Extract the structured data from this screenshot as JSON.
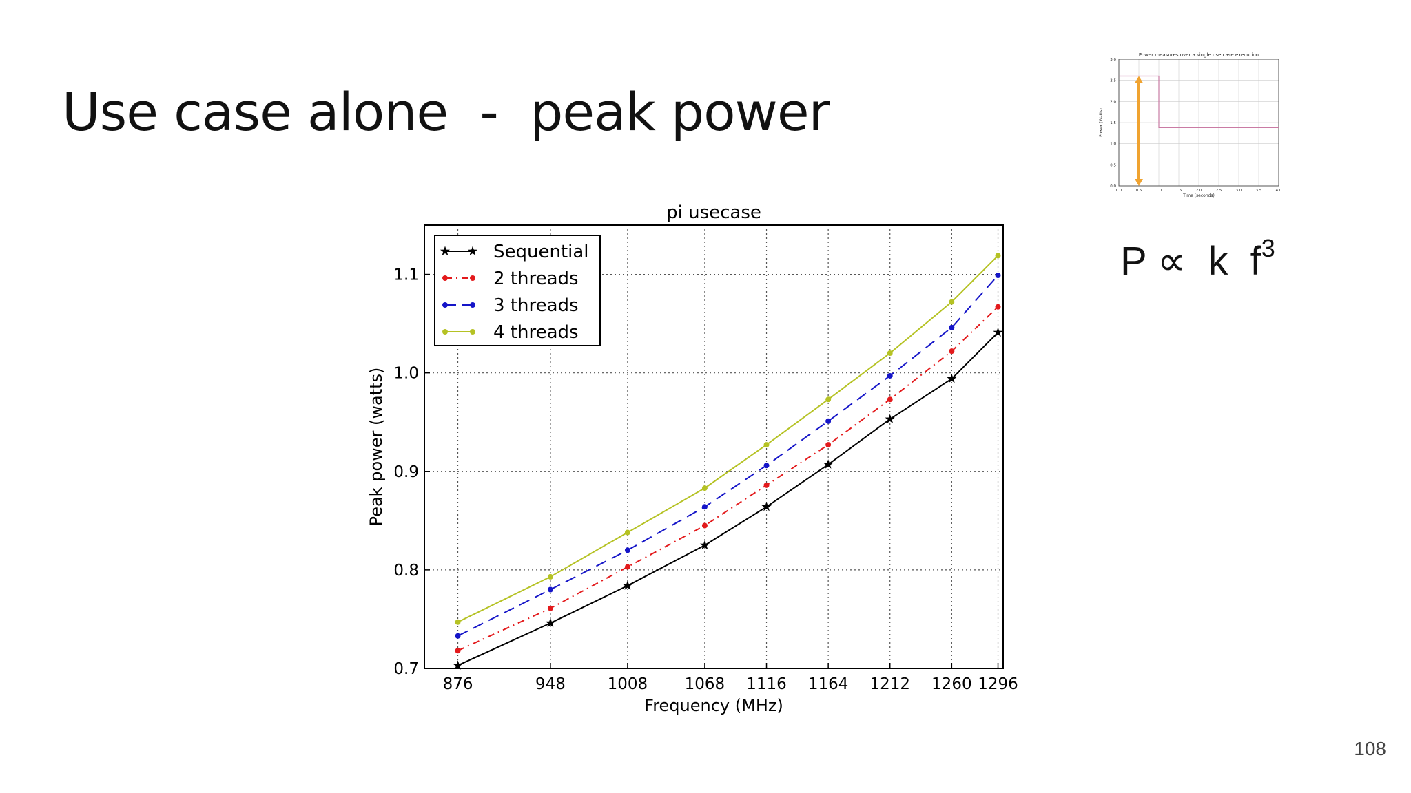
{
  "slide": {
    "title": "Use case alone  -  peak power",
    "page_number": "108",
    "formula": {
      "lhs": "P",
      "relation": "∝",
      "k": "k",
      "f": "f",
      "exponent": "3"
    }
  },
  "colors": {
    "sequential": "#000000",
    "two_threads": "#e31a1c",
    "three_threads": "#1515c8",
    "four_threads": "#b5c224",
    "inset_line": "#c97ba4",
    "inset_arrow": "#f0a330"
  },
  "chart_data": [
    {
      "id": "main",
      "type": "line",
      "title": "pi usecase",
      "xlabel": "Frequency (MHz)",
      "ylabel": "Peak power (watts)",
      "x": [
        876,
        948,
        1008,
        1068,
        1116,
        1164,
        1212,
        1260,
        1296
      ],
      "x_tick_labels": [
        "876",
        "948",
        "1008",
        "1068",
        "1116",
        "1164",
        "1212",
        "1260",
        "1296"
      ],
      "xlim": [
        850,
        1300
      ],
      "ylim": [
        0.7,
        1.15
      ],
      "y_ticks": [
        0.7,
        0.8,
        0.9,
        1.0,
        1.1
      ],
      "y_tick_labels": [
        "0.7",
        "0.8",
        "0.9",
        "1.0",
        "1.1"
      ],
      "grid": true,
      "legend_position": "top-left",
      "series": [
        {
          "name": "Sequential",
          "color": "#000000",
          "dash": "solid",
          "marker": "star",
          "values": [
            0.703,
            0.746,
            0.784,
            0.825,
            0.864,
            0.907,
            0.953,
            0.994,
            1.041
          ]
        },
        {
          "name": "2 threads",
          "color": "#e31a1c",
          "dash": "dashdot",
          "marker": "dot",
          "values": [
            0.718,
            0.761,
            0.803,
            0.845,
            0.886,
            0.927,
            0.973,
            1.022,
            1.067
          ]
        },
        {
          "name": "3 threads",
          "color": "#1515c8",
          "dash": "dashed",
          "marker": "dot",
          "values": [
            0.733,
            0.78,
            0.82,
            0.864,
            0.906,
            0.951,
            0.997,
            1.046,
            1.099
          ]
        },
        {
          "name": "4 threads",
          "color": "#b5c224",
          "dash": "solid",
          "marker": "dot",
          "values": [
            0.747,
            0.793,
            0.838,
            0.883,
            0.927,
            0.973,
            1.02,
            1.072,
            1.119
          ]
        }
      ]
    },
    {
      "id": "inset",
      "type": "line",
      "title": "Power measures over a single use case execution",
      "xlabel": "Time (seconds)",
      "ylabel": "Power (Watts)",
      "xlim": [
        0.0,
        4.0
      ],
      "ylim": [
        0.0,
        3.0
      ],
      "x_ticks": [
        0.0,
        0.5,
        1.0,
        1.5,
        2.0,
        2.5,
        3.0,
        3.5,
        4.0
      ],
      "x_tick_labels": [
        "0.0",
        "0.5",
        "1.0",
        "1.5",
        "2.0",
        "2.5",
        "3.0",
        "3.5",
        "4.0"
      ],
      "y_ticks": [
        0.0,
        0.5,
        1.0,
        1.5,
        2.0,
        2.5,
        3.0
      ],
      "y_tick_labels": [
        "0.0",
        "0.5",
        "1.0",
        "1.5",
        "2.0",
        "2.5",
        "3.0"
      ],
      "grid": true,
      "series": [
        {
          "color": "#c97ba4",
          "x": [
            0.0,
            0.95,
            0.95,
            1.0,
            1.0,
            4.0
          ],
          "y": [
            2.6,
            2.6,
            2.6,
            2.6,
            1.38,
            1.38
          ]
        }
      ],
      "arrow": {
        "x": 0.5,
        "y_from": 0.0,
        "y_to": 2.6,
        "color": "#f0a330"
      }
    }
  ]
}
